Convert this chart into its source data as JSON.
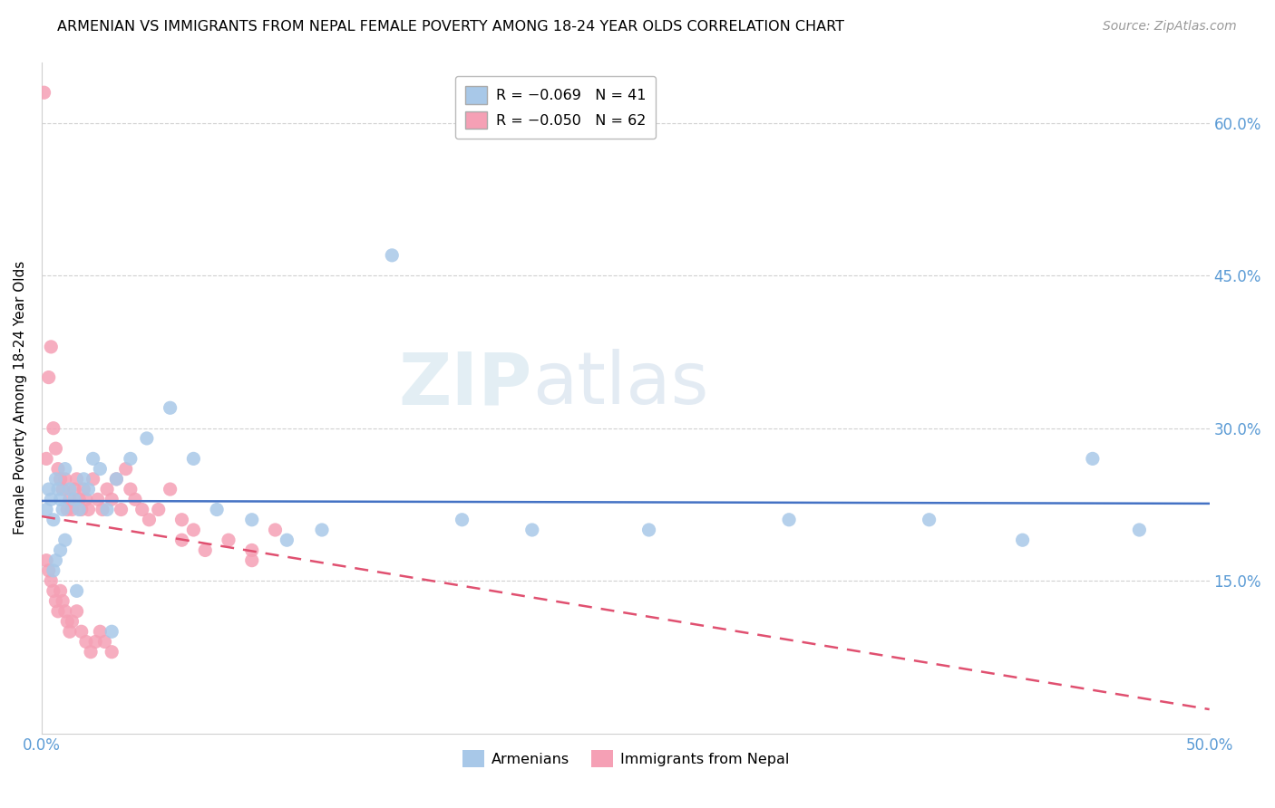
{
  "title": "ARMENIAN VS IMMIGRANTS FROM NEPAL FEMALE POVERTY AMONG 18-24 YEAR OLDS CORRELATION CHART",
  "source": "Source: ZipAtlas.com",
  "ylabel": "Female Poverty Among 18-24 Year Olds",
  "xlim": [
    0.0,
    0.5
  ],
  "ylim": [
    0.0,
    0.66
  ],
  "ytick_vals": [
    0.15,
    0.3,
    0.45,
    0.6
  ],
  "ytick_labels": [
    "15.0%",
    "30.0%",
    "45.0%",
    "60.0%"
  ],
  "armenian_color": "#a8c8e8",
  "nepal_color": "#f5a0b5",
  "armenian_trend_color": "#4472c4",
  "nepal_trend_color": "#e05070",
  "watermark_zip": "ZIP",
  "watermark_atlas": "atlas",
  "armenian_x": [
    0.002,
    0.003,
    0.004,
    0.005,
    0.006,
    0.007,
    0.008,
    0.009,
    0.01,
    0.012,
    0.014,
    0.016,
    0.018,
    0.02,
    0.022,
    0.025,
    0.028,
    0.032,
    0.038,
    0.045,
    0.055,
    0.065,
    0.075,
    0.09,
    0.105,
    0.12,
    0.15,
    0.18,
    0.21,
    0.26,
    0.32,
    0.38,
    0.42,
    0.45,
    0.47,
    0.005,
    0.006,
    0.008,
    0.01,
    0.015,
    0.03
  ],
  "armenian_y": [
    0.22,
    0.24,
    0.23,
    0.21,
    0.25,
    0.24,
    0.23,
    0.22,
    0.26,
    0.24,
    0.23,
    0.22,
    0.25,
    0.24,
    0.27,
    0.26,
    0.22,
    0.25,
    0.27,
    0.29,
    0.32,
    0.27,
    0.22,
    0.21,
    0.19,
    0.2,
    0.47,
    0.21,
    0.2,
    0.2,
    0.21,
    0.21,
    0.19,
    0.27,
    0.2,
    0.16,
    0.17,
    0.18,
    0.19,
    0.14,
    0.1
  ],
  "nepal_x": [
    0.001,
    0.002,
    0.003,
    0.004,
    0.005,
    0.006,
    0.007,
    0.008,
    0.009,
    0.01,
    0.011,
    0.012,
    0.013,
    0.014,
    0.015,
    0.016,
    0.017,
    0.018,
    0.019,
    0.02,
    0.022,
    0.024,
    0.026,
    0.028,
    0.03,
    0.032,
    0.034,
    0.036,
    0.038,
    0.04,
    0.043,
    0.046,
    0.05,
    0.055,
    0.06,
    0.065,
    0.07,
    0.08,
    0.09,
    0.1,
    0.002,
    0.003,
    0.004,
    0.005,
    0.006,
    0.007,
    0.008,
    0.009,
    0.01,
    0.011,
    0.012,
    0.013,
    0.015,
    0.017,
    0.019,
    0.021,
    0.023,
    0.025,
    0.027,
    0.03,
    0.06,
    0.09
  ],
  "nepal_y": [
    0.63,
    0.27,
    0.35,
    0.38,
    0.3,
    0.28,
    0.26,
    0.25,
    0.24,
    0.25,
    0.22,
    0.23,
    0.22,
    0.24,
    0.25,
    0.23,
    0.22,
    0.24,
    0.23,
    0.22,
    0.25,
    0.23,
    0.22,
    0.24,
    0.23,
    0.25,
    0.22,
    0.26,
    0.24,
    0.23,
    0.22,
    0.21,
    0.22,
    0.24,
    0.21,
    0.2,
    0.18,
    0.19,
    0.18,
    0.2,
    0.17,
    0.16,
    0.15,
    0.14,
    0.13,
    0.12,
    0.14,
    0.13,
    0.12,
    0.11,
    0.1,
    0.11,
    0.12,
    0.1,
    0.09,
    0.08,
    0.09,
    0.1,
    0.09,
    0.08,
    0.19,
    0.17
  ]
}
